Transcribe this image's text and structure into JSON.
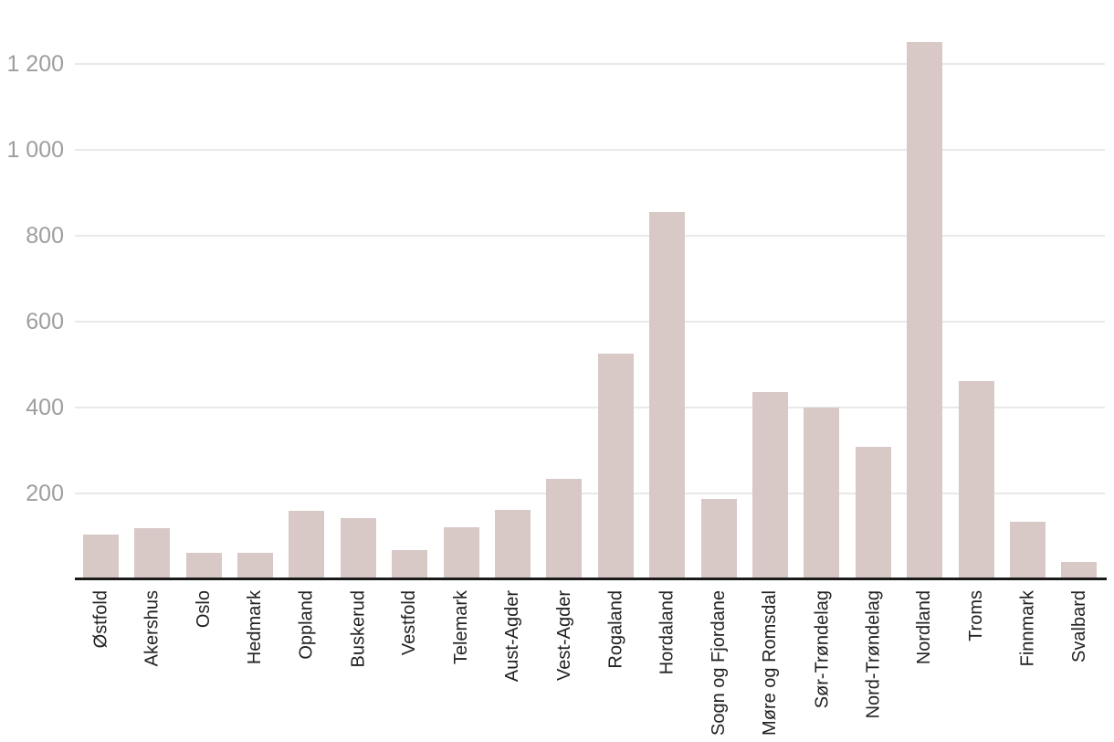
{
  "chart_data": {
    "type": "bar",
    "title": "",
    "xlabel": "",
    "ylabel": "",
    "categories": [
      "Østfold",
      "Akershus",
      "Oslo",
      "Hedmark",
      "Oppland",
      "Buskerud",
      "Vestfold",
      "Telemark",
      "Aust-Agder",
      "Vest-Agder",
      "Rogaland",
      "Hordaland",
      "Sogn og Fjordane",
      "Møre og Romsdal",
      "Sør-Trøndelag",
      "Nord-Trøndelag",
      "Nordland",
      "Troms",
      "Finnmark",
      "Svalbard"
    ],
    "values": [
      100,
      114,
      57,
      57,
      156,
      138,
      63,
      117,
      157,
      230,
      520,
      851,
      182,
      432,
      395,
      305,
      1245,
      458,
      129,
      37
    ],
    "y_ticks": [
      {
        "value": 200,
        "label": "200"
      },
      {
        "value": 400,
        "label": "400"
      },
      {
        "value": 600,
        "label": "600"
      },
      {
        "value": 800,
        "label": "800"
      },
      {
        "value": 1000,
        "label": "1 000"
      },
      {
        "value": 1200,
        "label": "1 200"
      }
    ],
    "ylim": [
      0,
      1250
    ],
    "grid": "horizontal",
    "legend_position": "none",
    "x_label_rotation_deg": -90,
    "colors": {
      "bar": "#d8c9c7",
      "grid": "#e9e9e9",
      "axis_line": "#1a1a1a",
      "y_label": "#9e9e9e",
      "x_label": "#212121",
      "background": "#ffffff"
    }
  }
}
